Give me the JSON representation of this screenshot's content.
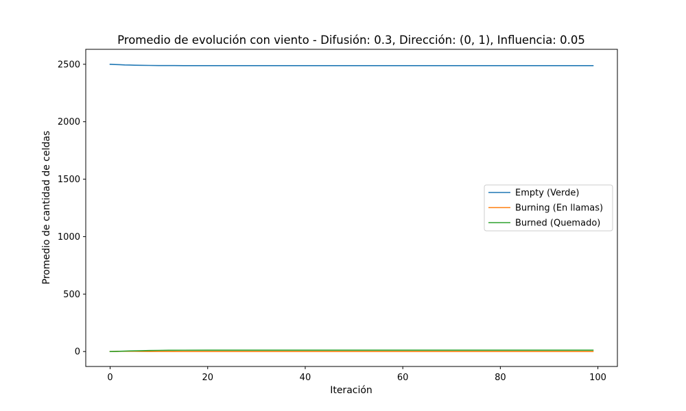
{
  "chart_data": {
    "type": "line",
    "title": "Promedio de evolución con viento - Difusión: 0.3, Dirección: (0, 1), Influencia: 0.05",
    "xlabel": "Iteración",
    "ylabel": "Promedio de cantidad de celdas",
    "xlim": [
      -5,
      104
    ],
    "ylim": [
      -130,
      2630
    ],
    "xticks": [
      0,
      20,
      40,
      60,
      80,
      100
    ],
    "yticks": [
      0,
      500,
      1000,
      1500,
      2000,
      2500
    ],
    "grid": false,
    "legend_position": "center-right",
    "series": [
      {
        "name": "Empty (Verde)",
        "color": "#1f77b4",
        "x": [
          0,
          1,
          2,
          3,
          4,
          5,
          6,
          8,
          10,
          12,
          15,
          20,
          30,
          50,
          99
        ],
        "y": [
          2500,
          2498,
          2496,
          2494,
          2493,
          2492,
          2491,
          2490,
          2489,
          2489,
          2488,
          2488,
          2488,
          2488,
          2488
        ]
      },
      {
        "name": "Burning (En llamas)",
        "color": "#ff7f0e",
        "x": [
          0,
          1,
          2,
          3,
          4,
          5,
          6,
          8,
          10,
          15,
          20,
          99
        ],
        "y": [
          0,
          1,
          2,
          2,
          2,
          2,
          1.5,
          1,
          0.5,
          0.2,
          0.1,
          0
        ]
      },
      {
        "name": "Burned (Quemado)",
        "color": "#2ca02c",
        "x": [
          0,
          1,
          2,
          3,
          4,
          5,
          6,
          8,
          10,
          12,
          15,
          20,
          99
        ],
        "y": [
          0,
          1,
          2,
          4,
          5,
          6,
          7,
          9,
          10,
          11,
          11.5,
          12,
          12
        ]
      }
    ]
  }
}
